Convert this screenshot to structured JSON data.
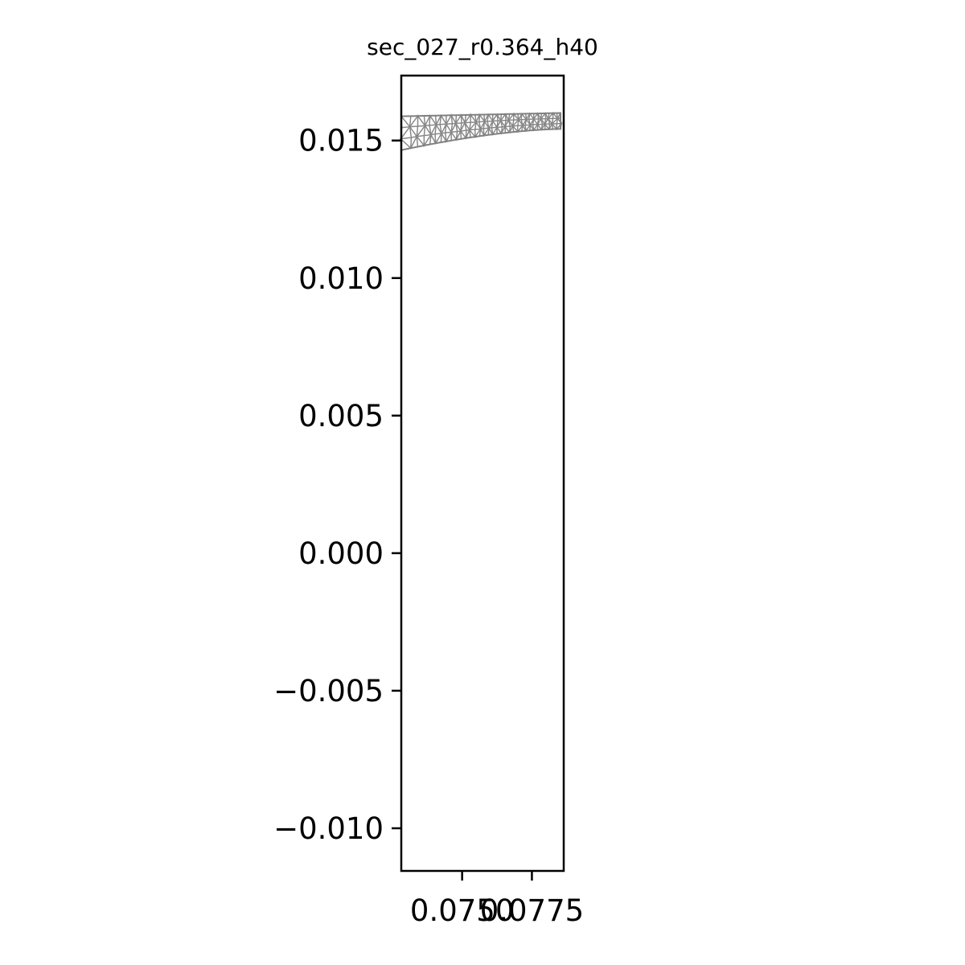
{
  "chart_data": {
    "type": "mesh",
    "title": "sec_027_r0.364_h40",
    "xlabel": "",
    "ylabel": "",
    "xlim": [
      0.07282,
      0.07864
    ],
    "ylim": [
      -0.01155,
      0.01736
    ],
    "x_ticks": [
      {
        "value": 0.075,
        "label": "0.0750"
      },
      {
        "value": 0.0775,
        "label": "0.0775"
      }
    ],
    "y_ticks": [
      {
        "value": 0.015,
        "label": "0.015"
      },
      {
        "value": 0.01,
        "label": "0.010"
      },
      {
        "value": 0.005,
        "label": "0.005"
      },
      {
        "value": 0.0,
        "label": "0.000"
      },
      {
        "value": -0.005,
        "label": "−0.005"
      },
      {
        "value": -0.01,
        "label": "−0.010"
      }
    ],
    "grid": false,
    "legend": "none",
    "mesh_color": "#808080",
    "mesh_region": {
      "x_start": 0.07282,
      "x_end": 0.07864,
      "top_y_start": 0.01588,
      "top_y_end": 0.016,
      "bottom_y_start": 0.01465,
      "bottom_y_end": 0.01542
    }
  }
}
